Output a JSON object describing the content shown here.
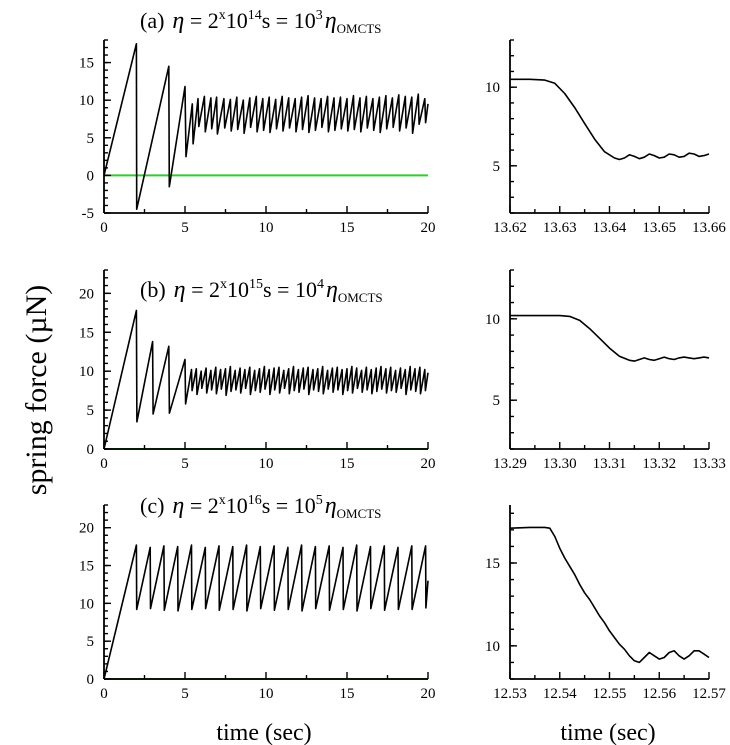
{
  "figure": {
    "ylabel": "spring force (µN)",
    "xlabel_left": "time (sec)",
    "xlabel_right": "time (sec)"
  },
  "colors": {
    "trace": "#000000",
    "zero_line": "#2ccd2c"
  },
  "chart_data": [
    {
      "id": "a-full",
      "type": "line",
      "title": {
        "label": "(a)",
        "eta": "η",
        "eq1": " = 2",
        "sup1": "x",
        "mid": "10",
        "sup2": "14",
        "unit": "s = 10",
        "sup3": "3",
        "eta2": "η",
        "sub": "OMCTS"
      },
      "xlim": [
        0,
        20
      ],
      "ylim": [
        -5,
        18
      ],
      "xticks": [
        0,
        5,
        10,
        15,
        20
      ],
      "yticks": [
        -5,
        0,
        5,
        10,
        15
      ],
      "zero_line": true,
      "series": [
        {
          "x": [
            0,
            2.0,
            2.02,
            4.0,
            4.03,
            5.0,
            5.06,
            5.45,
            5.5,
            5.8,
            5.85,
            6.2,
            6.25,
            6.6,
            6.65,
            6.95,
            7.0,
            7.4,
            7.45,
            7.8,
            7.85,
            8.2,
            8.25,
            8.6,
            8.65,
            9.0,
            9.05,
            9.4,
            9.45,
            9.8,
            9.85,
            10.2,
            10.25,
            10.6,
            10.65,
            11.0,
            11.05,
            11.4,
            11.45,
            11.8,
            11.85,
            12.2,
            12.25,
            12.6,
            12.65,
            13.0,
            13.05,
            13.4,
            13.45,
            13.8,
            13.85,
            14.2,
            14.25,
            14.6,
            14.65,
            15.0,
            15.05,
            15.4,
            15.45,
            15.8,
            15.85,
            16.2,
            16.25,
            16.6,
            16.65,
            17.0,
            17.05,
            17.4,
            17.45,
            17.8,
            17.85,
            18.2,
            18.25,
            18.6,
            18.65,
            19.0,
            19.05,
            19.4,
            19.45,
            19.8,
            19.85,
            20.0
          ],
          "y": [
            0,
            17.5,
            -4.5,
            14.5,
            -1.5,
            11.8,
            2.5,
            9.5,
            4.2,
            10.2,
            6.5,
            10.5,
            5.8,
            10.3,
            6.2,
            10.4,
            5.5,
            10.2,
            6.3,
            10.1,
            5.9,
            10.4,
            6.1,
            10.0,
            5.6,
            10.3,
            6.4,
            10.5,
            5.8,
            10.2,
            6.0,
            10.4,
            5.7,
            10.1,
            6.2,
            10.5,
            5.9,
            10.3,
            6.3,
            10.2,
            5.8,
            10.4,
            6.1,
            10.6,
            5.7,
            10.3,
            6.0,
            10.2,
            6.4,
            10.5,
            5.8,
            10.3,
            6.0,
            10.4,
            6.2,
            10.2,
            5.9,
            10.6,
            6.1,
            10.3,
            5.8,
            10.5,
            6.3,
            10.2,
            6.0,
            10.4,
            5.7,
            10.6,
            6.2,
            10.3,
            6.4,
            10.7,
            5.9,
            10.5,
            6.3,
            10.4,
            5.6,
            10.8,
            6.8,
            10.2,
            7.0,
            9.5
          ]
        }
      ]
    },
    {
      "id": "a-zoom",
      "type": "line",
      "xlim": [
        13.62,
        13.66
      ],
      "ylim": [
        2,
        13
      ],
      "xticks": [
        13.62,
        13.63,
        13.64,
        13.65,
        13.66
      ],
      "yticks": [
        5,
        10
      ],
      "series": [
        {
          "x": [
            13.62,
            13.624,
            13.627,
            13.629,
            13.631,
            13.633,
            13.635,
            13.637,
            13.639,
            13.641,
            13.642,
            13.643,
            13.644,
            13.645,
            13.646,
            13.647,
            13.648,
            13.649,
            13.65,
            13.651,
            13.652,
            13.653,
            13.654,
            13.655,
            13.656,
            13.657,
            13.658,
            13.659,
            13.66
          ],
          "y": [
            10.5,
            10.5,
            10.45,
            10.25,
            9.6,
            8.7,
            7.7,
            6.7,
            5.9,
            5.5,
            5.4,
            5.5,
            5.7,
            5.6,
            5.45,
            5.55,
            5.75,
            5.65,
            5.5,
            5.55,
            5.75,
            5.7,
            5.55,
            5.6,
            5.8,
            5.75,
            5.6,
            5.65,
            5.75
          ]
        }
      ]
    },
    {
      "id": "b-full",
      "type": "line",
      "title": {
        "label": "(b)",
        "eta": "η",
        "eq1": " = 2",
        "sup1": "x",
        "mid": "10",
        "sup2": "15",
        "unit": "s = 10",
        "sup3": "4",
        "eta2": "η",
        "sub": "OMCTS"
      },
      "xlim": [
        0,
        20
      ],
      "ylim": [
        0,
        23
      ],
      "xticks": [
        0,
        5,
        10,
        15,
        20
      ],
      "yticks": [
        0,
        5,
        10,
        15,
        20
      ],
      "zero_line": true,
      "series": [
        {
          "x": [
            0,
            2.0,
            2.03,
            3.0,
            3.03,
            4.0,
            4.04,
            5.0,
            5.04,
            5.4,
            5.44,
            5.7,
            5.74,
            6.0,
            6.04,
            6.3,
            6.34,
            6.6,
            6.64,
            6.9,
            6.94,
            7.2,
            7.24,
            7.5,
            7.54,
            7.8,
            7.84,
            8.1,
            8.14,
            8.4,
            8.44,
            8.7,
            8.74,
            9.0,
            9.04,
            9.3,
            9.34,
            9.6,
            9.64,
            9.9,
            9.94,
            10.2,
            10.24,
            10.5,
            10.54,
            10.8,
            10.84,
            11.1,
            11.14,
            11.4,
            11.44,
            11.7,
            11.74,
            12.0,
            12.04,
            12.3,
            12.34,
            12.6,
            12.64,
            12.9,
            12.94,
            13.2,
            13.24,
            13.5,
            13.54,
            13.8,
            13.84,
            14.1,
            14.14,
            14.4,
            14.44,
            14.7,
            14.74,
            15.0,
            15.04,
            15.3,
            15.34,
            15.6,
            15.64,
            15.9,
            15.94,
            16.2,
            16.24,
            16.5,
            16.54,
            16.8,
            16.84,
            17.1,
            17.14,
            17.4,
            17.44,
            17.7,
            17.74,
            18.0,
            18.04,
            18.3,
            18.34,
            18.6,
            18.64,
            18.9,
            18.94,
            19.2,
            19.24,
            19.5,
            19.54,
            19.8,
            19.84,
            20.0
          ],
          "y": [
            0,
            17.8,
            3.5,
            13.8,
            4.5,
            13.2,
            4.6,
            11.5,
            5.8,
            10.2,
            7.5,
            10.3,
            7.0,
            10.0,
            7.8,
            10.4,
            7.2,
            10.1,
            7.6,
            10.5,
            7.1,
            10.2,
            7.7,
            10.3,
            6.9,
            10.6,
            7.4,
            10.1,
            7.6,
            10.4,
            7.2,
            10.2,
            7.8,
            10.5,
            7.0,
            10.1,
            7.5,
            10.3,
            7.3,
            10.6,
            7.7,
            10.2,
            7.0,
            10.4,
            7.6,
            10.5,
            7.2,
            10.1,
            7.8,
            10.3,
            7.1,
            10.6,
            7.5,
            10.2,
            7.3,
            10.4,
            7.7,
            10.5,
            7.0,
            10.2,
            7.6,
            10.3,
            7.4,
            10.6,
            7.1,
            10.1,
            7.7,
            10.4,
            7.3,
            10.5,
            7.6,
            10.2,
            7.0,
            10.3,
            7.5,
            10.6,
            7.2,
            10.4,
            7.8,
            10.1,
            7.3,
            10.5,
            7.6,
            10.2,
            7.1,
            10.4,
            7.4,
            10.6,
            7.7,
            10.3,
            7.2,
            10.5,
            7.5,
            10.1,
            7.3,
            10.4,
            7.8,
            10.2,
            7.0,
            10.6,
            7.6,
            10.3,
            7.4,
            10.5,
            7.1,
            10.2,
            7.5,
            9.8
          ]
        }
      ]
    },
    {
      "id": "b-zoom",
      "type": "line",
      "xlim": [
        13.29,
        13.33
      ],
      "ylim": [
        2,
        13
      ],
      "xticks": [
        13.29,
        13.3,
        13.31,
        13.32,
        13.33
      ],
      "yticks": [
        5,
        10
      ],
      "series": [
        {
          "x": [
            13.29,
            13.295,
            13.3,
            13.302,
            13.304,
            13.306,
            13.308,
            13.31,
            13.312,
            13.314,
            13.315,
            13.316,
            13.317,
            13.318,
            13.319,
            13.32,
            13.321,
            13.322,
            13.323,
            13.324,
            13.325,
            13.326,
            13.327,
            13.328,
            13.329,
            13.33
          ],
          "y": [
            10.2,
            10.2,
            10.2,
            10.15,
            9.9,
            9.4,
            8.8,
            8.2,
            7.7,
            7.45,
            7.4,
            7.5,
            7.6,
            7.5,
            7.45,
            7.55,
            7.65,
            7.55,
            7.5,
            7.6,
            7.65,
            7.6,
            7.55,
            7.6,
            7.65,
            7.6
          ]
        }
      ]
    },
    {
      "id": "c-full",
      "type": "line",
      "title": {
        "label": "(c)",
        "eta": "η",
        "eq1": " = 2",
        "sup1": "x",
        "mid": "10",
        "sup2": "16",
        "unit": "s = 10",
        "sup3": "5",
        "eta2": "η",
        "sub": "OMCTS"
      },
      "xlim": [
        0,
        20
      ],
      "ylim": [
        0,
        23
      ],
      "xticks": [
        0,
        5,
        10,
        15,
        20
      ],
      "yticks": [
        0,
        5,
        10,
        15,
        20
      ],
      "zero_line": true,
      "series": [
        {
          "x": [
            0,
            2.0,
            2.02,
            2.85,
            2.87,
            3.7,
            3.72,
            4.55,
            4.57,
            5.4,
            5.42,
            6.25,
            6.27,
            7.1,
            7.12,
            7.95,
            7.97,
            8.8,
            8.82,
            9.65,
            9.67,
            10.5,
            10.52,
            11.35,
            11.37,
            12.2,
            12.22,
            13.05,
            13.07,
            13.9,
            13.92,
            14.75,
            14.77,
            15.6,
            15.62,
            16.45,
            16.47,
            17.3,
            17.32,
            18.15,
            18.17,
            19.0,
            19.02,
            19.85,
            19.87,
            20.0
          ],
          "y": [
            0,
            17.7,
            9.2,
            17.4,
            9.3,
            17.6,
            9.1,
            17.5,
            9.0,
            17.7,
            9.2,
            17.4,
            9.3,
            17.6,
            9.1,
            17.5,
            9.2,
            17.7,
            9.0,
            17.5,
            9.3,
            17.6,
            9.1,
            17.4,
            9.2,
            17.7,
            9.0,
            17.5,
            9.3,
            17.6,
            9.1,
            17.4,
            9.2,
            17.7,
            9.0,
            17.5,
            9.3,
            17.6,
            9.1,
            17.4,
            9.2,
            17.6,
            9.2,
            17.6,
            9.4,
            13.0
          ]
        }
      ]
    },
    {
      "id": "c-zoom",
      "type": "line",
      "xlim": [
        12.53,
        12.57
      ],
      "ylim": [
        8,
        18.5
      ],
      "xticks": [
        12.53,
        12.54,
        12.55,
        12.56,
        12.57
      ],
      "yticks": [
        10,
        15
      ],
      "series": [
        {
          "x": [
            12.53,
            12.534,
            12.537,
            12.538,
            12.539,
            12.54,
            12.541,
            12.542,
            12.543,
            12.544,
            12.545,
            12.546,
            12.547,
            12.548,
            12.549,
            12.55,
            12.551,
            12.552,
            12.553,
            12.554,
            12.555,
            12.556,
            12.557,
            12.558,
            12.559,
            12.56,
            12.561,
            12.562,
            12.563,
            12.564,
            12.565,
            12.566,
            12.567,
            12.568,
            12.569,
            12.57
          ],
          "y": [
            17.1,
            17.15,
            17.15,
            17.1,
            16.6,
            15.9,
            15.3,
            14.8,
            14.3,
            13.7,
            13.2,
            12.8,
            12.3,
            11.8,
            11.4,
            10.9,
            10.5,
            10.1,
            9.8,
            9.4,
            9.1,
            9.0,
            9.3,
            9.6,
            9.4,
            9.2,
            9.3,
            9.6,
            9.7,
            9.4,
            9.2,
            9.4,
            9.7,
            9.7,
            9.5,
            9.3
          ]
        }
      ]
    }
  ]
}
